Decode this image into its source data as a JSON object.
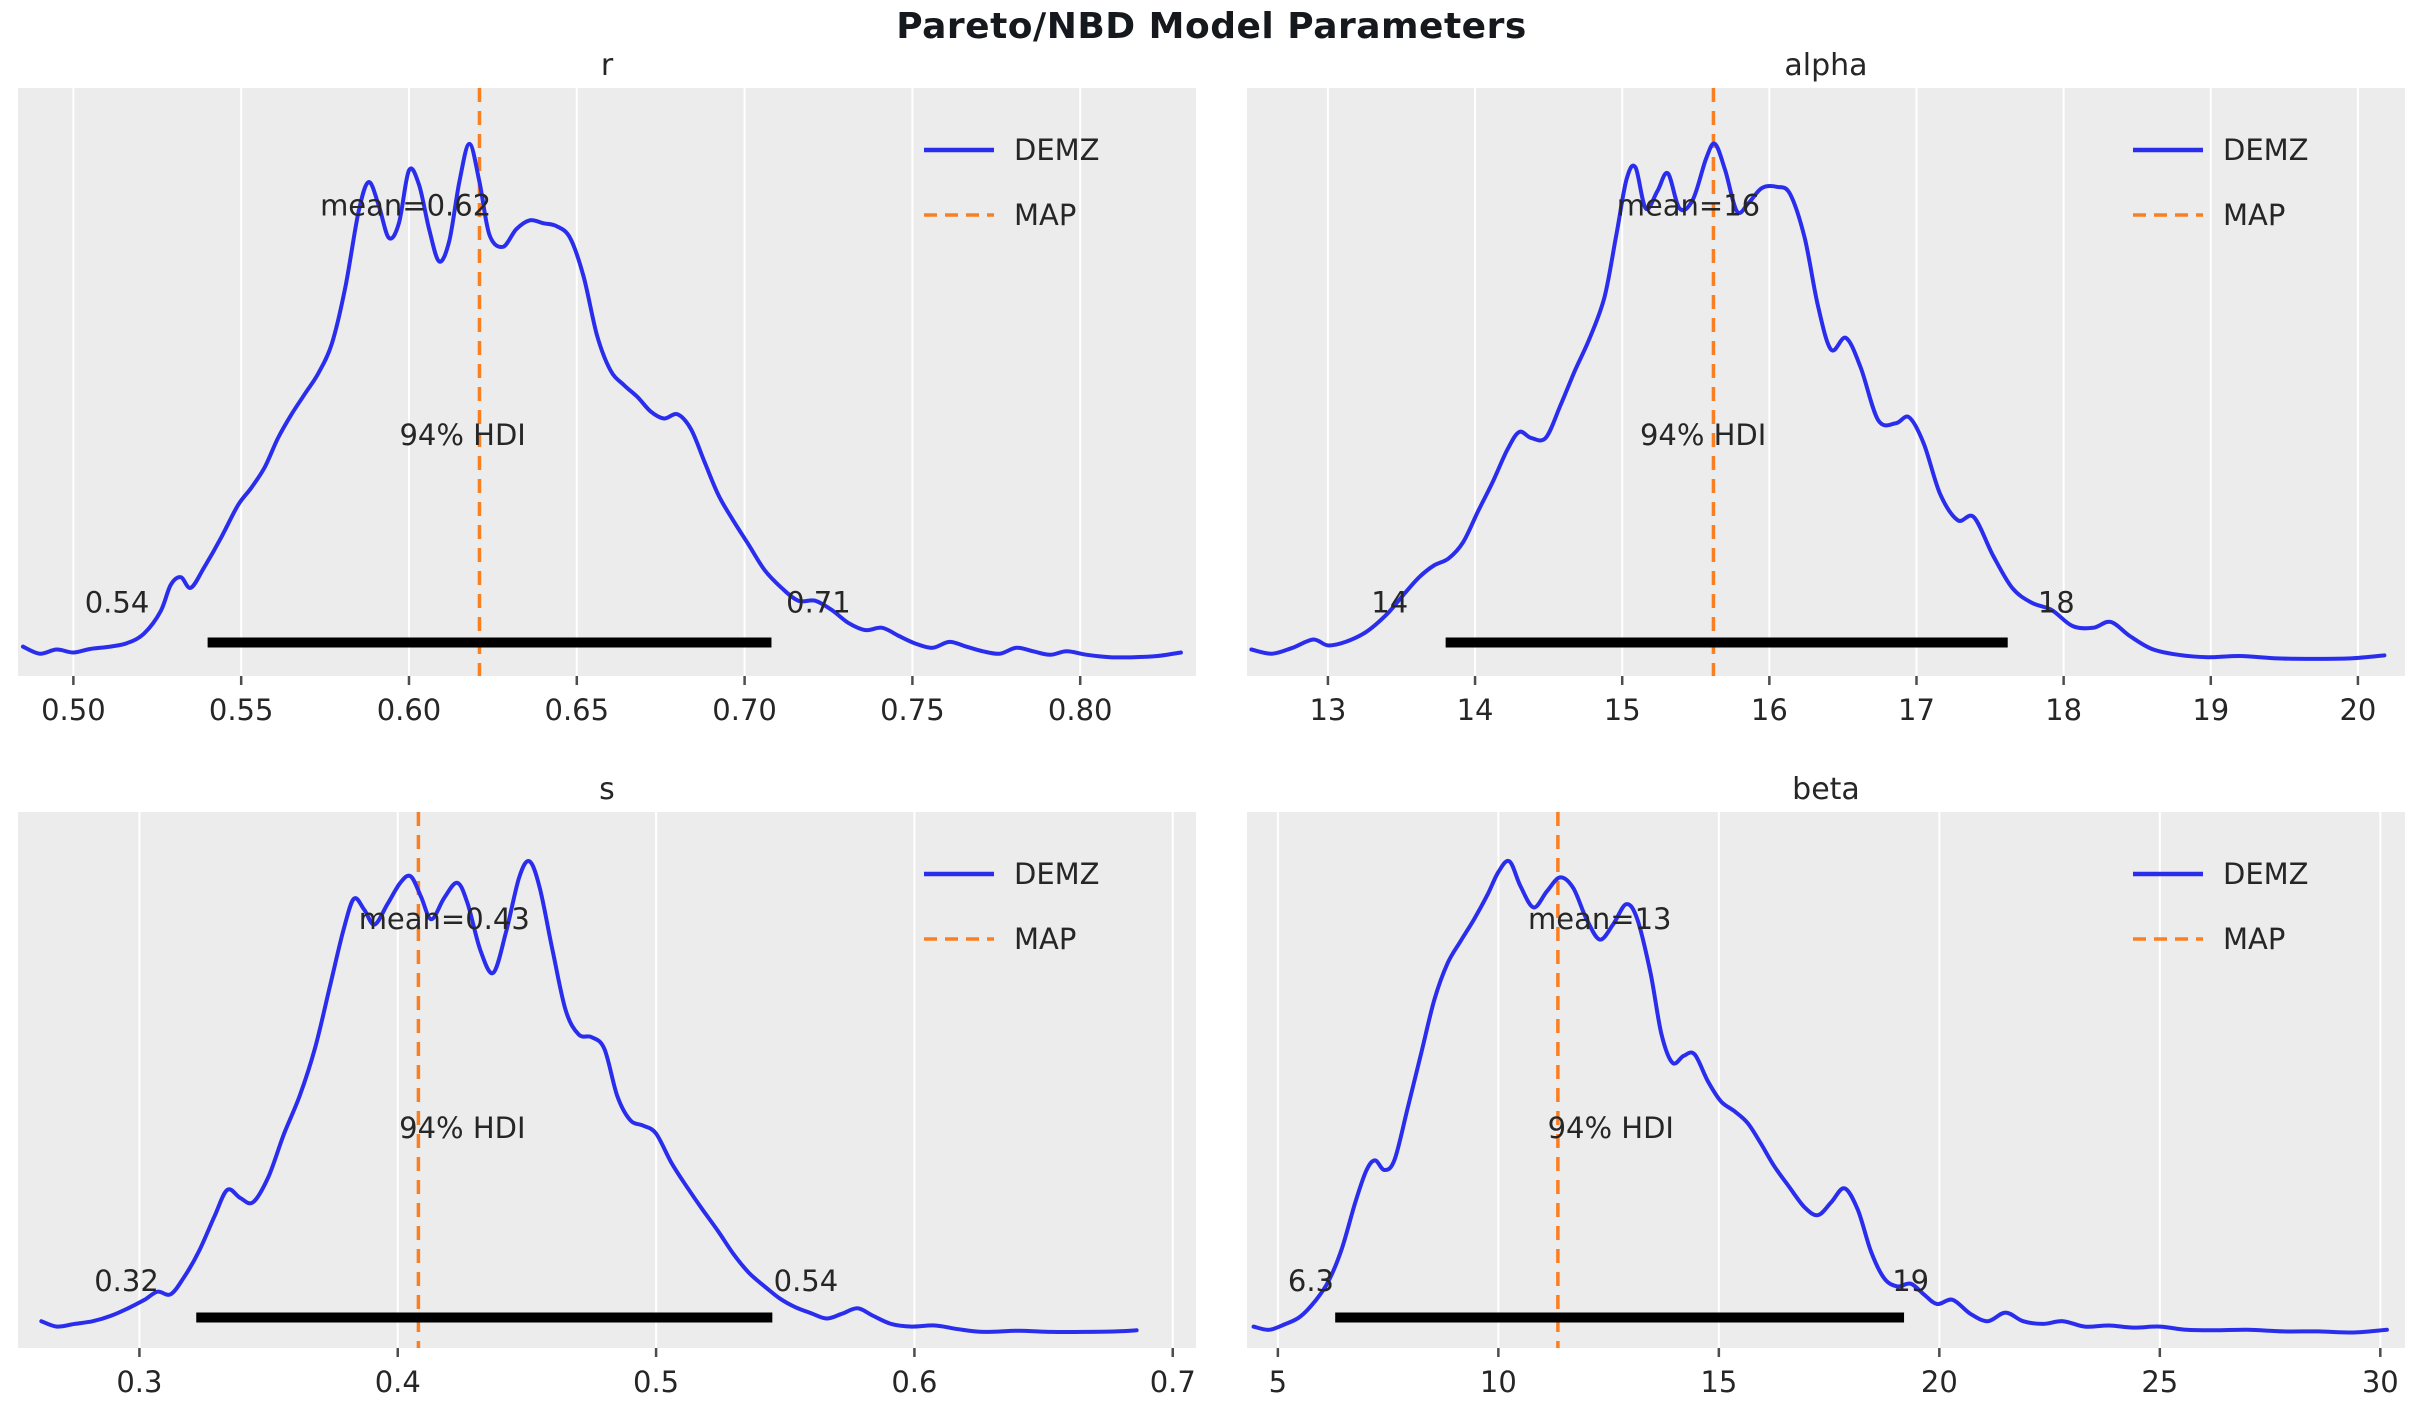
{
  "figure": {
    "title": "Pareto/NBD Model Parameters"
  },
  "style": {
    "axes_bg": "#ececec",
    "grid_color": "#ffffff",
    "curve_color": "#2a2eec",
    "map_color": "#fa7f23",
    "hdi_bar_color": "#000000",
    "text_color": "#262626",
    "tick_color": "#4d4d4d"
  },
  "legend": {
    "demz": "DEMZ",
    "map": "MAP"
  },
  "chart_data": [
    {
      "type": "kde-posterior",
      "param": "r",
      "title": "r",
      "mean": 0.62,
      "mean_label": "mean=0.62",
      "mean_label_x": 0.599,
      "map_value": 0.621,
      "hdi_label": "94% HDI",
      "hdi_label_x": 0.616,
      "hdi": [
        0.54,
        0.708
      ],
      "hdi_lo_label": "0.54",
      "hdi_hi_label": "0.71",
      "hdi_lo_label_x": 0.513,
      "hdi_hi_label_x": 0.722,
      "xlim": [
        0.4835,
        0.8345
      ],
      "xtick_values": [
        0.5,
        0.55,
        0.6,
        0.65,
        0.7,
        0.75,
        0.8
      ],
      "xticks": [
        "0.50",
        "0.55",
        "0.60",
        "0.65",
        "0.70",
        "0.75",
        "0.80"
      ],
      "legend_entries": [
        "DEMZ",
        "MAP"
      ],
      "curve": [
        [
          0.485,
          0.05
        ],
        [
          0.49,
          0.038
        ],
        [
          0.495,
          0.045
        ],
        [
          0.5,
          0.04
        ],
        [
          0.505,
          0.046
        ],
        [
          0.511,
          0.05
        ],
        [
          0.516,
          0.056
        ],
        [
          0.521,
          0.072
        ],
        [
          0.526,
          0.11
        ],
        [
          0.529,
          0.155
        ],
        [
          0.532,
          0.168
        ],
        [
          0.535,
          0.15
        ],
        [
          0.539,
          0.185
        ],
        [
          0.544,
          0.235
        ],
        [
          0.549,
          0.29
        ],
        [
          0.553,
          0.32
        ],
        [
          0.557,
          0.355
        ],
        [
          0.561,
          0.405
        ],
        [
          0.565,
          0.445
        ],
        [
          0.569,
          0.48
        ],
        [
          0.573,
          0.515
        ],
        [
          0.577,
          0.565
        ],
        [
          0.581,
          0.66
        ],
        [
          0.585,
          0.79
        ],
        [
          0.588,
          0.84
        ],
        [
          0.591,
          0.8
        ],
        [
          0.594,
          0.745
        ],
        [
          0.597,
          0.77
        ],
        [
          0.6,
          0.86
        ],
        [
          0.603,
          0.835
        ],
        [
          0.606,
          0.76
        ],
        [
          0.609,
          0.705
        ],
        [
          0.612,
          0.74
        ],
        [
          0.615,
          0.84
        ],
        [
          0.618,
          0.905
        ],
        [
          0.621,
          0.84
        ],
        [
          0.624,
          0.75
        ],
        [
          0.628,
          0.73
        ],
        [
          0.632,
          0.76
        ],
        [
          0.636,
          0.775
        ],
        [
          0.64,
          0.77
        ],
        [
          0.644,
          0.765
        ],
        [
          0.648,
          0.745
        ],
        [
          0.652,
          0.68
        ],
        [
          0.656,
          0.58
        ],
        [
          0.66,
          0.52
        ],
        [
          0.664,
          0.495
        ],
        [
          0.668,
          0.475
        ],
        [
          0.672,
          0.45
        ],
        [
          0.676,
          0.438
        ],
        [
          0.68,
          0.445
        ],
        [
          0.684,
          0.42
        ],
        [
          0.688,
          0.365
        ],
        [
          0.692,
          0.31
        ],
        [
          0.696,
          0.27
        ],
        [
          0.701,
          0.225
        ],
        [
          0.706,
          0.18
        ],
        [
          0.711,
          0.15
        ],
        [
          0.716,
          0.128
        ],
        [
          0.721,
          0.128
        ],
        [
          0.726,
          0.112
        ],
        [
          0.731,
          0.09
        ],
        [
          0.736,
          0.078
        ],
        [
          0.741,
          0.082
        ],
        [
          0.746,
          0.068
        ],
        [
          0.751,
          0.055
        ],
        [
          0.756,
          0.048
        ],
        [
          0.761,
          0.058
        ],
        [
          0.766,
          0.05
        ],
        [
          0.771,
          0.042
        ],
        [
          0.776,
          0.038
        ],
        [
          0.781,
          0.048
        ],
        [
          0.786,
          0.042
        ],
        [
          0.791,
          0.036
        ],
        [
          0.796,
          0.042
        ],
        [
          0.802,
          0.036
        ],
        [
          0.809,
          0.032
        ],
        [
          0.816,
          0.032
        ],
        [
          0.823,
          0.034
        ],
        [
          0.83,
          0.04
        ]
      ]
    },
    {
      "type": "kde-posterior",
      "param": "alpha",
      "title": "alpha",
      "mean": 16,
      "mean_label": "mean=16",
      "mean_label_x": 15.45,
      "map_value": 15.62,
      "hdi_label": "94% HDI",
      "hdi_label_x": 15.55,
      "hdi": [
        13.8,
        17.62
      ],
      "hdi_lo_label": "14",
      "hdi_hi_label": "18",
      "hdi_lo_label_x": 13.42,
      "hdi_hi_label_x": 17.95,
      "xlim": [
        12.45,
        20.32
      ],
      "xtick_values": [
        13,
        14,
        15,
        16,
        17,
        18,
        19,
        20
      ],
      "xticks": [
        "13",
        "14",
        "15",
        "16",
        "17",
        "18",
        "19",
        "20"
      ],
      "legend_entries": [
        "DEMZ",
        "MAP"
      ],
      "curve": [
        [
          12.48,
          0.045
        ],
        [
          12.62,
          0.038
        ],
        [
          12.76,
          0.048
        ],
        [
          12.9,
          0.062
        ],
        [
          13.0,
          0.052
        ],
        [
          13.12,
          0.058
        ],
        [
          13.26,
          0.075
        ],
        [
          13.4,
          0.105
        ],
        [
          13.52,
          0.14
        ],
        [
          13.62,
          0.168
        ],
        [
          13.72,
          0.188
        ],
        [
          13.82,
          0.2
        ],
        [
          13.92,
          0.228
        ],
        [
          14.02,
          0.28
        ],
        [
          14.12,
          0.33
        ],
        [
          14.22,
          0.385
        ],
        [
          14.3,
          0.415
        ],
        [
          14.38,
          0.405
        ],
        [
          14.48,
          0.405
        ],
        [
          14.58,
          0.46
        ],
        [
          14.68,
          0.52
        ],
        [
          14.78,
          0.575
        ],
        [
          14.88,
          0.645
        ],
        [
          14.96,
          0.75
        ],
        [
          15.03,
          0.845
        ],
        [
          15.09,
          0.865
        ],
        [
          15.16,
          0.795
        ],
        [
          15.24,
          0.825
        ],
        [
          15.31,
          0.855
        ],
        [
          15.39,
          0.795
        ],
        [
          15.48,
          0.81
        ],
        [
          15.57,
          0.88
        ],
        [
          15.63,
          0.905
        ],
        [
          15.7,
          0.86
        ],
        [
          15.78,
          0.79
        ],
        [
          15.86,
          0.805
        ],
        [
          15.95,
          0.83
        ],
        [
          16.05,
          0.832
        ],
        [
          16.14,
          0.82
        ],
        [
          16.24,
          0.745
        ],
        [
          16.33,
          0.63
        ],
        [
          16.42,
          0.555
        ],
        [
          16.52,
          0.575
        ],
        [
          16.62,
          0.525
        ],
        [
          16.74,
          0.435
        ],
        [
          16.86,
          0.43
        ],
        [
          16.95,
          0.44
        ],
        [
          17.05,
          0.395
        ],
        [
          17.16,
          0.31
        ],
        [
          17.28,
          0.265
        ],
        [
          17.39,
          0.27
        ],
        [
          17.52,
          0.205
        ],
        [
          17.65,
          0.15
        ],
        [
          17.78,
          0.125
        ],
        [
          17.92,
          0.112
        ],
        [
          18.06,
          0.085
        ],
        [
          18.2,
          0.082
        ],
        [
          18.32,
          0.092
        ],
        [
          18.45,
          0.068
        ],
        [
          18.6,
          0.046
        ],
        [
          18.78,
          0.036
        ],
        [
          18.98,
          0.032
        ],
        [
          19.2,
          0.034
        ],
        [
          19.45,
          0.03
        ],
        [
          19.7,
          0.029
        ],
        [
          19.95,
          0.03
        ],
        [
          20.18,
          0.035
        ]
      ]
    },
    {
      "type": "kde-posterior",
      "param": "s",
      "title": "s",
      "mean": 0.43,
      "mean_label": "mean=0.43",
      "mean_label_x": 0.418,
      "map_value": 0.408,
      "hdi_label": "94% HDI",
      "hdi_label_x": 0.425,
      "hdi": [
        0.322,
        0.545
      ],
      "hdi_lo_label": "0.32",
      "hdi_hi_label": "0.54",
      "hdi_lo_label_x": 0.295,
      "hdi_hi_label_x": 0.558,
      "xlim": [
        0.253,
        0.709
      ],
      "xtick_values": [
        0.3,
        0.4,
        0.5,
        0.6,
        0.7
      ],
      "xticks": [
        "0.3",
        "0.4",
        "0.5",
        "0.6",
        "0.7"
      ],
      "legend_entries": [
        "DEMZ",
        "MAP"
      ],
      "curve": [
        [
          0.262,
          0.05
        ],
        [
          0.268,
          0.04
        ],
        [
          0.275,
          0.045
        ],
        [
          0.282,
          0.05
        ],
        [
          0.289,
          0.06
        ],
        [
          0.296,
          0.075
        ],
        [
          0.302,
          0.09
        ],
        [
          0.307,
          0.105
        ],
        [
          0.312,
          0.1
        ],
        [
          0.317,
          0.13
        ],
        [
          0.323,
          0.18
        ],
        [
          0.329,
          0.245
        ],
        [
          0.334,
          0.295
        ],
        [
          0.339,
          0.28
        ],
        [
          0.344,
          0.272
        ],
        [
          0.35,
          0.32
        ],
        [
          0.356,
          0.4
        ],
        [
          0.362,
          0.47
        ],
        [
          0.368,
          0.56
        ],
        [
          0.374,
          0.68
        ],
        [
          0.379,
          0.78
        ],
        [
          0.383,
          0.838
        ],
        [
          0.387,
          0.818
        ],
        [
          0.391,
          0.79
        ],
        [
          0.396,
          0.828
        ],
        [
          0.401,
          0.868
        ],
        [
          0.405,
          0.88
        ],
        [
          0.409,
          0.842
        ],
        [
          0.413,
          0.8
        ],
        [
          0.418,
          0.84
        ],
        [
          0.423,
          0.868
        ],
        [
          0.427,
          0.83
        ],
        [
          0.432,
          0.742
        ],
        [
          0.437,
          0.7
        ],
        [
          0.442,
          0.778
        ],
        [
          0.447,
          0.878
        ],
        [
          0.451,
          0.908
        ],
        [
          0.455,
          0.858
        ],
        [
          0.46,
          0.74
        ],
        [
          0.465,
          0.63
        ],
        [
          0.47,
          0.585
        ],
        [
          0.475,
          0.58
        ],
        [
          0.48,
          0.558
        ],
        [
          0.485,
          0.47
        ],
        [
          0.49,
          0.425
        ],
        [
          0.495,
          0.415
        ],
        [
          0.5,
          0.4
        ],
        [
          0.506,
          0.345
        ],
        [
          0.512,
          0.3
        ],
        [
          0.518,
          0.258
        ],
        [
          0.524,
          0.218
        ],
        [
          0.53,
          0.175
        ],
        [
          0.536,
          0.14
        ],
        [
          0.542,
          0.115
        ],
        [
          0.548,
          0.092
        ],
        [
          0.554,
          0.076
        ],
        [
          0.56,
          0.065
        ],
        [
          0.566,
          0.055
        ],
        [
          0.572,
          0.064
        ],
        [
          0.578,
          0.074
        ],
        [
          0.584,
          0.06
        ],
        [
          0.591,
          0.045
        ],
        [
          0.599,
          0.04
        ],
        [
          0.608,
          0.042
        ],
        [
          0.617,
          0.035
        ],
        [
          0.627,
          0.03
        ],
        [
          0.64,
          0.032
        ],
        [
          0.653,
          0.03
        ],
        [
          0.666,
          0.03
        ],
        [
          0.678,
          0.031
        ],
        [
          0.686,
          0.033
        ]
      ]
    },
    {
      "type": "kde-posterior",
      "param": "beta",
      "title": "beta",
      "mean": 13,
      "mean_label": "mean=13",
      "mean_label_x": 12.3,
      "map_value": 11.35,
      "hdi_label": "94% HDI",
      "hdi_label_x": 12.55,
      "hdi": [
        6.3,
        19.2
      ],
      "hdi_lo_label": "6.3",
      "hdi_hi_label": "19",
      "hdi_lo_label_x": 5.75,
      "hdi_hi_label_x": 19.35,
      "xlim": [
        4.3,
        30.56
      ],
      "xtick_values": [
        5,
        10,
        15,
        20,
        25,
        30
      ],
      "xticks": [
        "5",
        "10",
        "15",
        "20",
        "25",
        "30"
      ],
      "legend_entries": [
        "DEMZ",
        "MAP"
      ],
      "curve": [
        [
          4.45,
          0.04
        ],
        [
          4.8,
          0.034
        ],
        [
          5.15,
          0.044
        ],
        [
          5.5,
          0.058
        ],
        [
          5.85,
          0.088
        ],
        [
          6.15,
          0.125
        ],
        [
          6.45,
          0.185
        ],
        [
          6.75,
          0.27
        ],
        [
          7.0,
          0.33
        ],
        [
          7.2,
          0.35
        ],
        [
          7.42,
          0.332
        ],
        [
          7.65,
          0.352
        ],
        [
          7.95,
          0.45
        ],
        [
          8.25,
          0.55
        ],
        [
          8.55,
          0.65
        ],
        [
          8.85,
          0.718
        ],
        [
          9.15,
          0.76
        ],
        [
          9.45,
          0.8
        ],
        [
          9.75,
          0.845
        ],
        [
          10.0,
          0.888
        ],
        [
          10.25,
          0.908
        ],
        [
          10.5,
          0.862
        ],
        [
          10.8,
          0.822
        ],
        [
          11.1,
          0.852
        ],
        [
          11.4,
          0.878
        ],
        [
          11.7,
          0.858
        ],
        [
          12.0,
          0.8
        ],
        [
          12.3,
          0.762
        ],
        [
          12.6,
          0.79
        ],
        [
          12.9,
          0.828
        ],
        [
          13.15,
          0.8
        ],
        [
          13.45,
          0.7
        ],
        [
          13.7,
          0.585
        ],
        [
          13.95,
          0.532
        ],
        [
          14.2,
          0.545
        ],
        [
          14.45,
          0.548
        ],
        [
          14.75,
          0.498
        ],
        [
          15.05,
          0.46
        ],
        [
          15.35,
          0.442
        ],
        [
          15.65,
          0.42
        ],
        [
          15.95,
          0.382
        ],
        [
          16.25,
          0.34
        ],
        [
          16.6,
          0.3
        ],
        [
          16.95,
          0.262
        ],
        [
          17.25,
          0.248
        ],
        [
          17.55,
          0.272
        ],
        [
          17.85,
          0.298
        ],
        [
          18.15,
          0.258
        ],
        [
          18.45,
          0.18
        ],
        [
          18.75,
          0.13
        ],
        [
          19.05,
          0.115
        ],
        [
          19.35,
          0.12
        ],
        [
          19.65,
          0.1
        ],
        [
          19.95,
          0.082
        ],
        [
          20.3,
          0.09
        ],
        [
          20.7,
          0.064
        ],
        [
          21.1,
          0.05
        ],
        [
          21.5,
          0.066
        ],
        [
          21.9,
          0.05
        ],
        [
          22.35,
          0.045
        ],
        [
          22.8,
          0.05
        ],
        [
          23.3,
          0.04
        ],
        [
          23.85,
          0.042
        ],
        [
          24.4,
          0.038
        ],
        [
          25.0,
          0.04
        ],
        [
          25.6,
          0.034
        ],
        [
          26.25,
          0.033
        ],
        [
          27.0,
          0.034
        ],
        [
          27.8,
          0.031
        ],
        [
          28.6,
          0.031
        ],
        [
          29.4,
          0.029
        ],
        [
          30.15,
          0.034
        ]
      ]
    }
  ]
}
